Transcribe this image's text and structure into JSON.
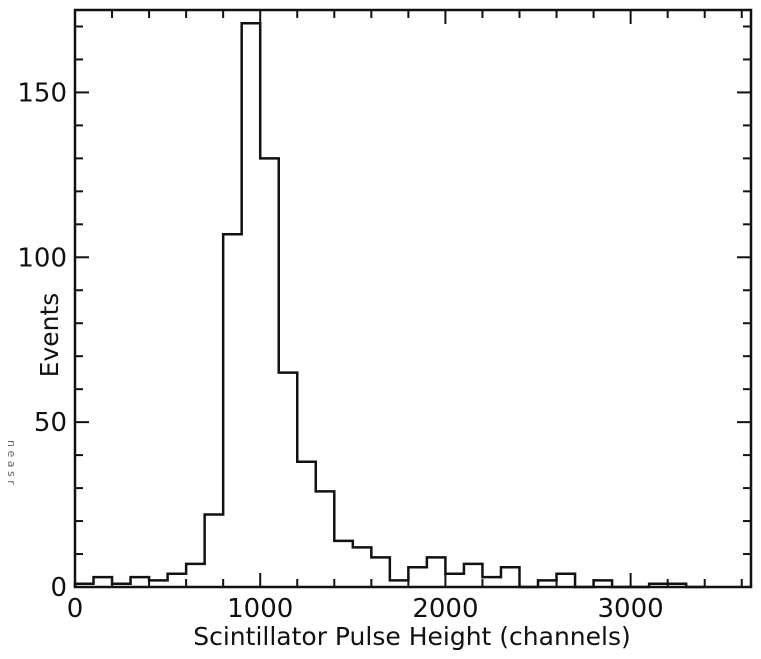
{
  "chart_data": {
    "type": "bar",
    "title": "",
    "xlabel": "Scintillator Pulse Height (channels)",
    "ylabel": "Events",
    "xlim": [
      0,
      3650
    ],
    "ylim": [
      0,
      175
    ],
    "bin_width": 100,
    "x_ticks": [
      0,
      1000,
      2000,
      3000
    ],
    "x_tick_labels": [
      "0",
      "1000",
      "2000",
      "3000"
    ],
    "y_ticks": [
      0,
      50,
      100,
      150
    ],
    "y_tick_labels": [
      "0",
      "50",
      "100",
      "150"
    ],
    "grid": false,
    "categories": [
      0,
      100,
      200,
      300,
      400,
      500,
      600,
      700,
      800,
      900,
      1000,
      1100,
      1200,
      1300,
      1400,
      1500,
      1600,
      1700,
      1800,
      1900,
      2000,
      2100,
      2200,
      2300,
      2400,
      2500,
      2600,
      2700,
      2800,
      2900,
      3000,
      3100,
      3200,
      3300
    ],
    "values": [
      1,
      3,
      1,
      3,
      2,
      4,
      7,
      22,
      107,
      171,
      130,
      65,
      38,
      29,
      14,
      12,
      9,
      2,
      6,
      9,
      4,
      7,
      3,
      6,
      0,
      2,
      4,
      0,
      2,
      0,
      0,
      1,
      1,
      0
    ]
  },
  "margin_note": "n e a s r"
}
